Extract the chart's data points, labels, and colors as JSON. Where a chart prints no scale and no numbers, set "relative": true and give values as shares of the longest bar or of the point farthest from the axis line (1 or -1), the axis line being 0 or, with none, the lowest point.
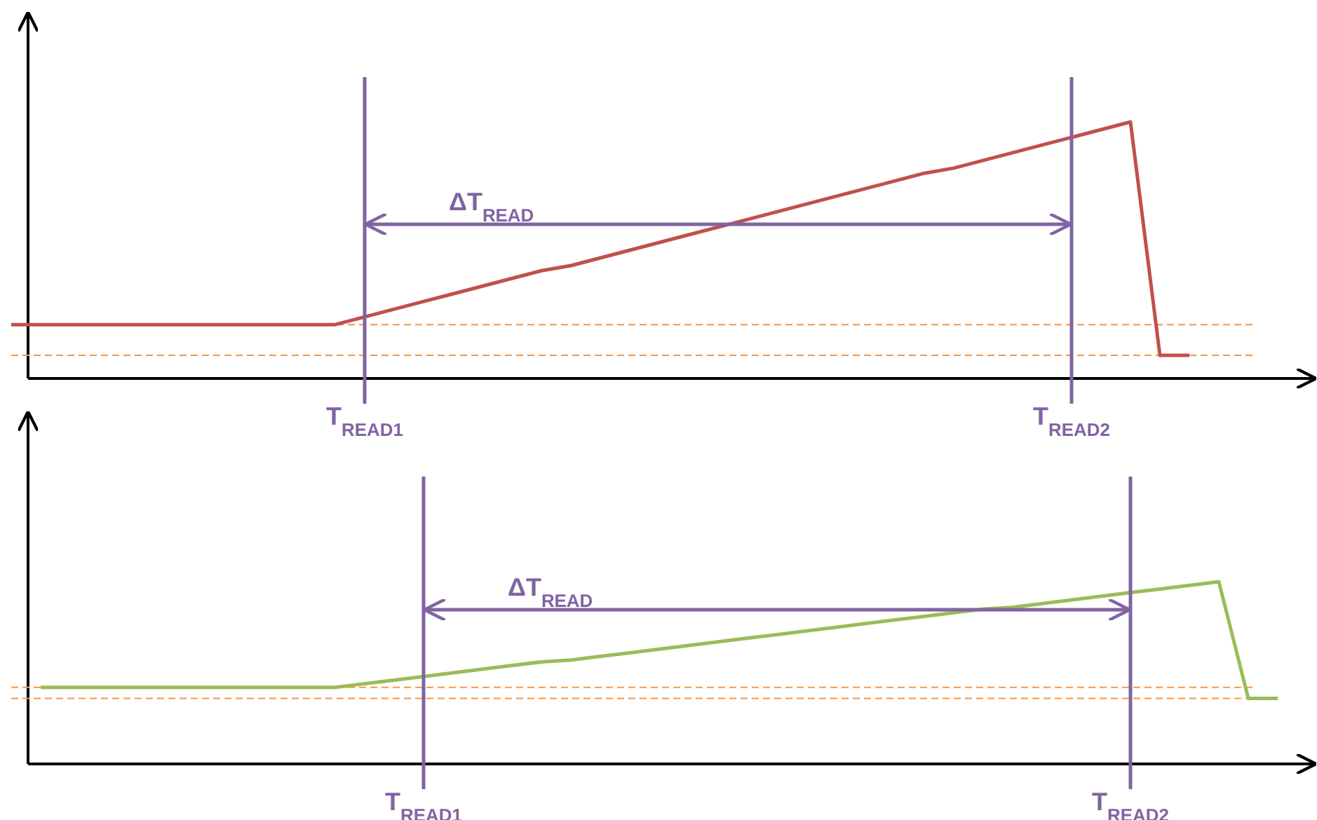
{
  "chart_data": [
    {
      "type": "line",
      "relative": true,
      "tick_labels": "x",
      "line_style": "solid",
      "categories": [
        null,
        null,
        null,
        null,
        null,
        null,
        null,
        null,
        null,
        null,
        null,
        null,
        "T$_{READ1}$",
        null,
        null,
        null,
        null,
        null,
        null,
        null,
        null,
        null,
        null,
        null,
        null,
        null,
        null,
        null,
        null,
        null,
        null,
        null,
        null,
        null,
        null,
        null,
        "T$_{READ2}$",
        null,
        null,
        null,
        null,
        null,
        null,
        null,
        null
      ],
      "series": [
        {
          "color": "#c0504d",
          "values": [
            0.21,
            0.21,
            0.21,
            0.21,
            0.21,
            0.21,
            0.21,
            0.21,
            0.21,
            0.21,
            0.21,
            0.21,
            0.24,
            0.27,
            0.3,
            0.33,
            0.36,
            0.39,
            0.42,
            0.44,
            0.47,
            0.5,
            0.53,
            0.56,
            0.59,
            0.62,
            0.65,
            0.68,
            0.71,
            0.74,
            0.77,
            0.8,
            0.82,
            0.85,
            0.88,
            0.91,
            0.94,
            0.97,
            1,
            0.09,
            0.09,
            null,
            null,
            null,
            null
          ]
        }
      ],
      "ref_lines": [
        {
          "axis": "x",
          "value": "T$_{READ1}$",
          "color": "#8064a2",
          "line_style": "solid"
        },
        {
          "axis": "x",
          "value": "T$_{READ2}$",
          "color": "#8064a2",
          "line_style": "solid"
        },
        {
          "axis": "y",
          "value": 0.21,
          "color": "#f79646",
          "line_style": "dashed"
        },
        {
          "axis": "y",
          "value": 0.09,
          "color": "#f79646",
          "line_style": "dashed"
        }
      ],
      "annotations": [
        "ΔT$_{READ}$"
      ]
    },
    {
      "type": "line",
      "relative": true,
      "tick_labels": "x",
      "line_style": "solid",
      "categories": [
        null,
        null,
        null,
        null,
        null,
        null,
        null,
        null,
        null,
        null,
        null,
        null,
        null,
        null,
        "T$_{READ1}$",
        null,
        null,
        null,
        null,
        null,
        null,
        null,
        null,
        null,
        null,
        null,
        null,
        null,
        null,
        null,
        null,
        null,
        null,
        null,
        null,
        null,
        null,
        null,
        "T$_{READ2}$",
        null,
        null,
        null,
        null,
        null,
        null
      ],
      "series": [
        {
          "color": "#9bbb59",
          "values": [
            null,
            0.42,
            0.42,
            0.42,
            0.42,
            0.42,
            0.42,
            0.42,
            0.42,
            0.42,
            0.42,
            0.42,
            0.44,
            0.46,
            0.48,
            0.5,
            0.52,
            0.54,
            0.56,
            0.57,
            0.59,
            0.61,
            0.63,
            0.65,
            0.67,
            0.69,
            0.71,
            0.73,
            0.75,
            0.77,
            0.79,
            0.81,
            0.83,
            0.85,
            0.86,
            0.88,
            0.9,
            0.92,
            0.94,
            0.96,
            0.98,
            1,
            0.36,
            0.36,
            null
          ]
        }
      ],
      "ref_lines": [
        {
          "axis": "x",
          "value": "T$_{READ1}$",
          "color": "#8064a2",
          "line_style": "solid"
        },
        {
          "axis": "x",
          "value": "T$_{READ2}$",
          "color": "#8064a2",
          "line_style": "solid"
        },
        {
          "axis": "y",
          "value": 0.42,
          "color": "#f79646",
          "line_style": "dashed"
        },
        {
          "axis": "y",
          "value": 0.36,
          "color": "#f79646",
          "line_style": "dashed"
        }
      ],
      "annotations": [
        "ΔT$_{READ}$"
      ]
    }
  ]
}
